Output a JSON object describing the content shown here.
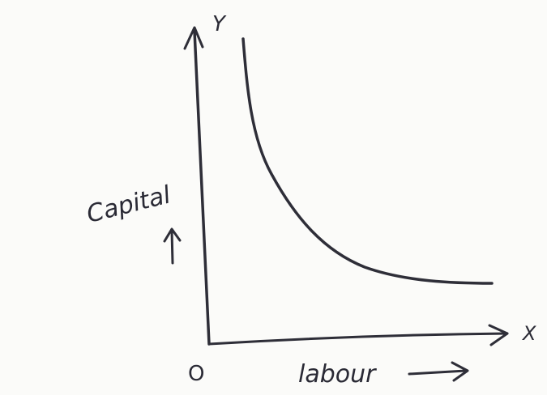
{
  "axes": {
    "y_name": "Y",
    "x_name": "X",
    "origin": "O"
  },
  "labels": {
    "y_axis": "Capital",
    "x_axis": "labour"
  }
}
